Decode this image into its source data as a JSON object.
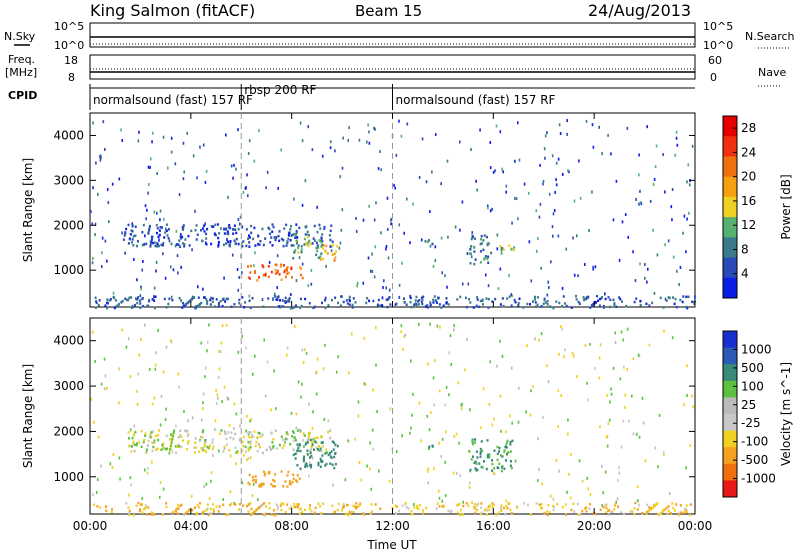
{
  "header": {
    "station": "King Salmon (fitACF)",
    "beam": "Beam 15",
    "date": "24/Aug/2013"
  },
  "strip_labels": {
    "nsky": "N.Sky",
    "nsky_top": "10^5",
    "nsky_bottom": "10^0",
    "nsearch": "N.Search",
    "nsearch_top": "10^5",
    "nsearch_bottom": "10^0",
    "freq_line1": "Freq.",
    "freq_line2": "[MHz]",
    "freq_top": "18",
    "freq_bottom": "8",
    "nave": "Nave",
    "nave_top": "60",
    "nave_bottom": "0",
    "cpid": "CPID"
  },
  "cpid_segments": [
    {
      "label": "normalsound (fast) 157 RF",
      "start_hour": 0,
      "end_hour": 6
    },
    {
      "label": "rbsp 200 RF",
      "start_hour": 6,
      "end_hour": 12
    },
    {
      "label": "normalsound (fast) 157 RF",
      "start_hour": 12,
      "end_hour": 24
    }
  ],
  "colors": {
    "power_scale": [
      "#0a1ee6",
      "#2a4ab8",
      "#3a7a8a",
      "#58b070",
      "#f0d020",
      "#f5a010",
      "#f07010",
      "#f03010",
      "#e60000"
    ],
    "velocity_scale": [
      "#1a2fd0",
      "#2a5ab5",
      "#3a8a7a",
      "#5cc040",
      "#bbbbbb",
      "#c8c8c8",
      "#f0d020",
      "#f5a020",
      "#f07010",
      "#e81818"
    ]
  },
  "chart_data": [
    {
      "type": "heatmap",
      "title": "Power",
      "xlabel": "Time UT",
      "ylabel": "Slant Range [km]",
      "xlim": [
        0,
        24
      ],
      "ylim": [
        180,
        4500
      ],
      "x_ticks": [
        "00:00",
        "04:00",
        "08:00",
        "12:00",
        "16:00",
        "20:00",
        "00:00"
      ],
      "y_ticks": [
        1000,
        2000,
        3000,
        4000
      ],
      "colorbar_label": "Power [dB]",
      "colorbar_ticks": [
        "4",
        "8",
        "12",
        "16",
        "20",
        "24",
        "28"
      ],
      "colorbar_range": [
        0,
        30
      ],
      "regions": [
        {
          "t0": 1.3,
          "t1": 9.6,
          "r0": 1550,
          "r1": 2050,
          "v": 5
        },
        {
          "t0": 6.2,
          "t1": 8.4,
          "r0": 800,
          "r1": 1150,
          "v": 22
        },
        {
          "t0": 8.0,
          "t1": 9.2,
          "r0": 1250,
          "r1": 1850,
          "v": 11
        },
        {
          "t0": 9.1,
          "t1": 9.8,
          "r0": 1200,
          "r1": 1600,
          "v": 18
        },
        {
          "t0": 13.2,
          "t1": 13.6,
          "r0": 1550,
          "r1": 1750,
          "v": 9
        },
        {
          "t0": 15.0,
          "t1": 15.9,
          "r0": 1150,
          "r1": 1850,
          "v": 8
        },
        {
          "t0": 16.2,
          "t1": 16.8,
          "r0": 1400,
          "r1": 1700,
          "v": 12
        },
        {
          "t0": 0,
          "t1": 24,
          "r0": 180,
          "r1": 450,
          "v": 6
        }
      ]
    },
    {
      "type": "heatmap",
      "title": "Velocity",
      "xlabel": "Time UT",
      "ylabel": "Slant Range [km]",
      "xlim": [
        0,
        24
      ],
      "ylim": [
        180,
        4500
      ],
      "x_ticks": [
        "00:00",
        "04:00",
        "08:00",
        "12:00",
        "16:00",
        "20:00",
        "00:00"
      ],
      "y_ticks": [
        1000,
        2000,
        3000,
        4000
      ],
      "colorbar_label": "Velocity [m s^-1]",
      "colorbar_ticks": [
        "1000",
        "500",
        "100",
        "25",
        "-25",
        "-100",
        "-500",
        "-1000"
      ],
      "regions": [
        {
          "t0": 1.3,
          "t1": 9.6,
          "r0": 1550,
          "r1": 2050,
          "v": 0
        },
        {
          "t0": 6.2,
          "t1": 8.4,
          "r0": 800,
          "r1": 1150,
          "v": -300
        },
        {
          "t0": 8.0,
          "t1": 9.8,
          "r0": 1200,
          "r1": 1850,
          "v": 200
        },
        {
          "t0": 13.2,
          "t1": 13.6,
          "r0": 1550,
          "r1": 1750,
          "v": 150
        },
        {
          "t0": 15.0,
          "t1": 16.8,
          "r0": 1150,
          "r1": 1850,
          "v": 120
        },
        {
          "t0": 0,
          "t1": 24,
          "r0": 180,
          "r1": 450,
          "v": -80
        }
      ]
    }
  ]
}
